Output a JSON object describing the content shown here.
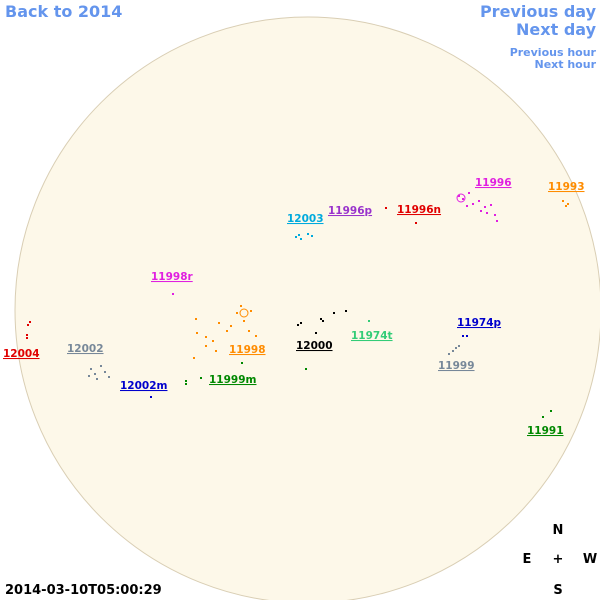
{
  "nav": {
    "back": "Back to 2014",
    "previous_day": "Previous day",
    "next_day": "Next day",
    "previous_hour": "Previous hour",
    "next_hour": "Next hour"
  },
  "regions": [
    {
      "label": "11996",
      "color": "#e020e0"
    },
    {
      "label": "11993",
      "color": "#ff8c00"
    },
    {
      "label": "11996n",
      "color": "#e00000"
    },
    {
      "label": "11996p",
      "color": "#9933cc"
    },
    {
      "label": "12003",
      "color": "#00aadd"
    },
    {
      "label": "11998r",
      "color": "#e020e0"
    },
    {
      "label": "12004",
      "color": "#e00000"
    },
    {
      "label": "12002",
      "color": "#778899"
    },
    {
      "label": "11998",
      "color": "#ff8c00"
    },
    {
      "label": "12000",
      "color": "#000000"
    },
    {
      "label": "11974t",
      "color": "#33cc77"
    },
    {
      "label": "11974p",
      "color": "#0000cc"
    },
    {
      "label": "11999",
      "color": "#778899"
    },
    {
      "label": "12002m",
      "color": "#0000cc"
    },
    {
      "label": "11999m",
      "color": "#008800"
    },
    {
      "label": "11991",
      "color": "#008800"
    }
  ],
  "compass": {
    "north": "N",
    "east": "E",
    "center": "+",
    "west": "W",
    "south": "S"
  },
  "timestamp": "2014-03-10T05:00:29"
}
